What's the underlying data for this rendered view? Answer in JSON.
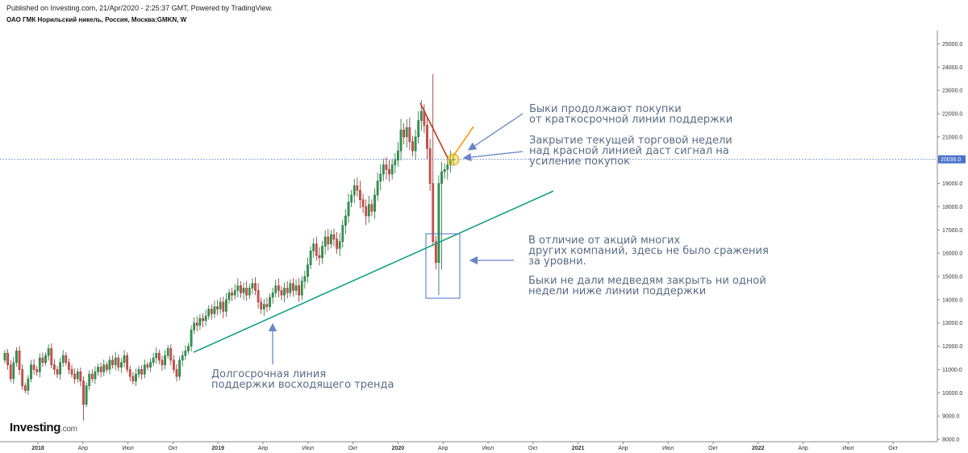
{
  "header": {
    "published": "Published on Investing.com, 21/Apr/2020 - 2:25:37 GMT, Powered by TradingView.",
    "symbol": "ОАО ГМК Норильский никель, Россия, Москва:GMKN, W"
  },
  "logo": {
    "brand": "Investing",
    "domain": ".com"
  },
  "colors": {
    "up": "#2e9a4f",
    "down": "#d9534f",
    "support_line": "#16a085",
    "red_line": "#c0392b",
    "orange_line": "#f39c12",
    "annotation": "#6a84c6",
    "price_line": "#4a72c9"
  },
  "annotations": {
    "bulls_continue": "Быки продолжают покупки\nот краткосрочной линии поддержки",
    "close_signal": "Закрытие текущей торговой недели\nнад красной линией даст сигнал на\nусиление покупок",
    "no_fight": "В отличие от акций многих\nдругих компаний, здесь не было сражения\nза уровни.",
    "bulls_hold": "Быки не дали медведям закрыть ни одной\nнедели ниже линии поддержки",
    "long_term": "Долгосрочная линия\nподдержки восходящего тренда"
  },
  "chart_data": {
    "type": "candlestick",
    "title": "ОАО ГМК Норильский никель, Россия, Москва:GMKN, W",
    "interval": "weekly",
    "ylim": [
      8000,
      25500
    ],
    "yticks": [
      8000,
      9000,
      10000,
      11000,
      12000,
      13000,
      14000,
      15000,
      16000,
      17000,
      18000,
      19000,
      20000,
      21000,
      22000,
      23000,
      24000,
      25000
    ],
    "ytick_labels": [
      "8000.0",
      "9000.0",
      "10000.0",
      "11000.0",
      "12000.0",
      "13000.0",
      "14000.0",
      "15000.0",
      "16000.0",
      "17000.0",
      "18000.0",
      "19000.0",
      "20000.0",
      "21000.0",
      "22000.0",
      "23000.0",
      "24000.0",
      "25000.0"
    ],
    "xticks": [
      "2018",
      "Апр",
      "Июл",
      "Окт",
      "2019",
      "Апр",
      "Июл",
      "Окт",
      "2020",
      "Апр",
      "Июл",
      "Окт",
      "2021",
      "Апр",
      "Июл",
      "Окт",
      "2022",
      "Апр",
      "Июл",
      "Окт"
    ],
    "last_price": 20036.0,
    "last_price_label": "20036.0",
    "closes": [
      11700,
      11200,
      10600,
      11300,
      11800,
      11000,
      10300,
      10100,
      10600,
      11200,
      11000,
      10900,
      11500,
      11300,
      11600,
      11900,
      11200,
      11000,
      10800,
      11300,
      11600,
      11300,
      11000,
      10800,
      10600,
      10900,
      10500,
      9500,
      10300,
      10800,
      10600,
      10900,
      11100,
      10900,
      11200,
      11000,
      11400,
      11200,
      11500,
      11100,
      11300,
      11600,
      11000,
      10700,
      10500,
      10800,
      11000,
      10800,
      11200,
      11100,
      11300,
      11500,
      11700,
      11400,
      11200,
      11600,
      11900,
      11400,
      11000,
      10700,
      11400,
      11600,
      11800,
      12000,
      12700,
      13000,
      12900,
      13200,
      13100,
      13300,
      13600,
      13400,
      13700,
      13600,
      13900,
      13500,
      14000,
      14300,
      14200,
      14400,
      14600,
      14300,
      14500,
      14200,
      14500,
      14700,
      14400,
      13900,
      13600,
      13800,
      13700,
      14100,
      14300,
      14600,
      14400,
      14200,
      14500,
      14300,
      14700,
      14400,
      14600,
      14200,
      14800,
      15000,
      15500,
      16100,
      16400,
      15900,
      15800,
      16300,
      16700,
      16400,
      16800,
      16600,
      16200,
      16500,
      17200,
      17600,
      18200,
      18500,
      18900,
      18700,
      18300,
      18000,
      17600,
      18100,
      17800,
      18500,
      19100,
      19400,
      19800,
      19600,
      19400,
      19800,
      20000,
      20400,
      21300,
      21000,
      21400,
      20800,
      20400,
      21000,
      21700,
      22100,
      21500,
      20500,
      19000,
      16500,
      15600,
      19000,
      19500,
      19600,
      19800,
      20000,
      20036
    ]
  }
}
